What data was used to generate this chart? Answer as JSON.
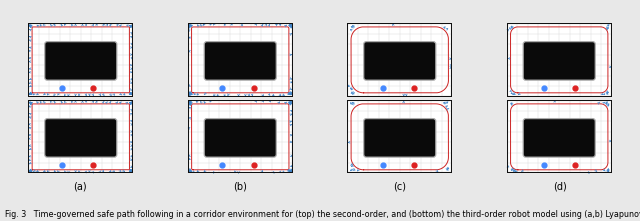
{
  "figure_width": 6.4,
  "figure_height": 2.21,
  "dpi": 100,
  "nrows": 2,
  "ncols": 4,
  "subplot_labels": [
    "(a)",
    "(b)",
    "(c)",
    "(d)"
  ],
  "caption": "Fig. 3   Time-governed safe path following in a corridor environment for (top) the second-order, and (bottom) the third-order robot model using (a,b) Lyapunov",
  "caption_fontsize": 5.8,
  "label_fontsize": 7.0,
  "background_color": "#e8e8e8",
  "panel_bg": "#ffffff",
  "path_color_blue": "#4488cc",
  "path_color_red": "#cc2222",
  "grid_color": "#d0d0d0",
  "border_color_dark": "#111111",
  "obstacle_color": "#111111",
  "obstacle_border": "#555555"
}
